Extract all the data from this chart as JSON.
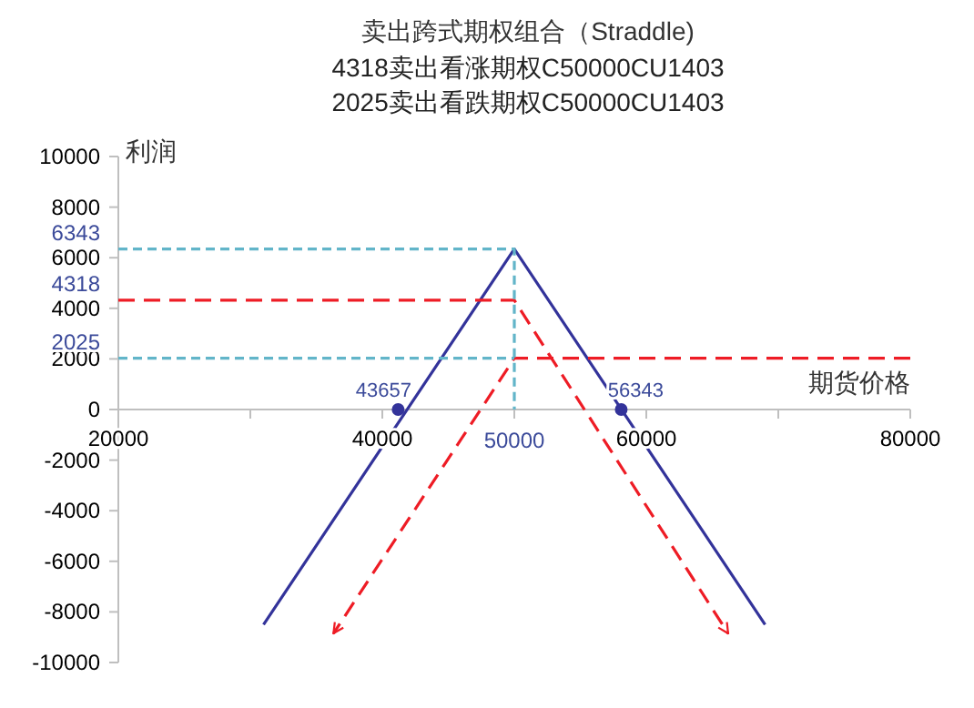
{
  "chart_data": {
    "type": "line",
    "title": "卖出跨式期权组合（Straddle)",
    "subtitle": "4318卖出看涨期权C50000CU1403\n2025卖出看跌期权C50000CU1403",
    "xlabel": "期货价格",
    "ylabel": "利润",
    "xlim": [
      20000,
      80000
    ],
    "ylim": [
      -10000,
      10000
    ],
    "xticks": [
      20000,
      {
        "value": 30000,
        "label": null
      },
      40000,
      {
        "value": 50000,
        "label": null
      },
      60000,
      {
        "value": 70000,
        "label": null
      },
      80000
    ],
    "yticks": [
      -10000,
      -8000,
      -6000,
      -4000,
      -2000,
      0,
      2000,
      4000,
      6000,
      8000,
      10000
    ],
    "grid": false,
    "series": [
      {
        "color": "#33339a",
        "line_style": "solid",
        "x": [
          31000,
          50000,
          69000
        ],
        "values": [
          -8500,
          6343,
          -8500
        ]
      },
      {
        "color": "#ee1c25",
        "line_style": "dashed",
        "x": [
          20000,
          50000,
          66200
        ],
        "values": [
          4318,
          4318,
          -8850
        ]
      },
      {
        "color": "#ee1c25",
        "line_style": "dashed",
        "x": [
          80000,
          50000,
          36300
        ],
        "values": [
          2025,
          2025,
          -8850
        ]
      },
      {
        "color": "#62b5c9",
        "line_style": "dotted",
        "x": [
          20000,
          50000,
          50000
        ],
        "values": [
          6343,
          6343,
          0
        ]
      },
      {
        "color": "#62b5c9",
        "line_style": "dotted",
        "x": [
          20000,
          50000
        ],
        "values": [
          2025,
          2025
        ]
      },
      {
        "type": "scatter",
        "color": "#33339a",
        "marker": "circle",
        "x": [
          41200,
          58100
        ],
        "values": [
          0,
          0
        ]
      }
    ],
    "annotations": [
      {
        "text": "6343",
        "x": 20000,
        "y": 6343
      },
      {
        "text": "4318",
        "x": 20000,
        "y": 4318
      },
      {
        "text": "2025",
        "x": 20000,
        "y": 2025
      },
      {
        "text": "43657",
        "x": 41200,
        "y": 0
      },
      {
        "text": "56343",
        "x": 58100,
        "y": 0
      },
      {
        "text": "50000",
        "x": 50000,
        "y": 0
      }
    ]
  }
}
